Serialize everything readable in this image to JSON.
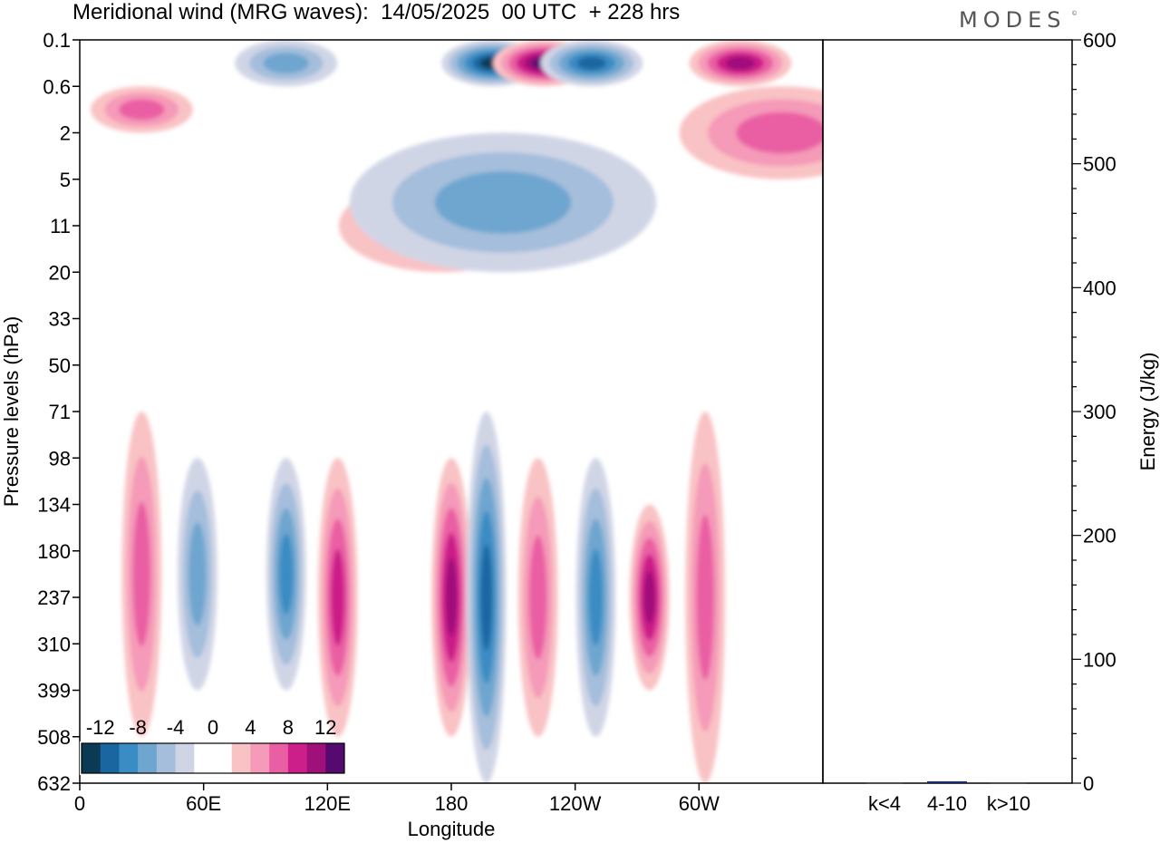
{
  "title": "Meridional wind (MRG waves):  14/05/2025  00 UTC  + 228 hrs",
  "brand": "MODES",
  "brand_mark": "©",
  "chart_data": [
    {
      "type": "heatmap",
      "xlabel": "Longitude",
      "ylabel": "Pressure levels (hPa)",
      "x_ticks": [
        "0",
        "60E",
        "120E",
        "180",
        "120W",
        "60W"
      ],
      "y_ticks": [
        "0.1",
        "0.6",
        "2",
        "5",
        "11",
        "20",
        "33",
        "50",
        "71",
        "98",
        "134",
        "180",
        "237",
        "310",
        "399",
        "508",
        "632"
      ],
      "colorbar_labels": [
        "-12",
        "-8",
        "-4",
        "0",
        "4",
        "8",
        "12"
      ],
      "colorbar_colors": [
        "#0b3a55",
        "#1a66a0",
        "#3a8cc4",
        "#6ea6cf",
        "#a4bedb",
        "#d0d5e6",
        "#ffffff",
        "#ffffff",
        "#f9c2c4",
        "#f59ab8",
        "#ea5fa3",
        "#cc1f8a",
        "#a0107a",
        "#540a6e"
      ],
      "features": [
        {
          "sign": "positive",
          "center_longitude": 30,
          "pressure_top": 71,
          "pressure_bottom": 508,
          "peak_magnitude": 8
        },
        {
          "sign": "negative",
          "center_longitude": 57,
          "pressure_top": 98,
          "pressure_bottom": 399,
          "peak_magnitude": 8
        },
        {
          "sign": "negative",
          "center_longitude": 100,
          "pressure_top": 98,
          "pressure_bottom": 399,
          "peak_magnitude": 10
        },
        {
          "sign": "positive",
          "center_longitude": 125,
          "pressure_top": 98,
          "pressure_bottom": 508,
          "peak_magnitude": 10
        },
        {
          "sign": "positive",
          "center_longitude": 180,
          "pressure_top": 98,
          "pressure_bottom": 508,
          "peak_magnitude": 12
        },
        {
          "sign": "negative",
          "center_longitude": -163,
          "pressure_top": 71,
          "pressure_bottom": 632,
          "peak_magnitude": 12
        },
        {
          "sign": "positive",
          "center_longitude": -138,
          "pressure_top": 98,
          "pressure_bottom": 508,
          "peak_magnitude": 8
        },
        {
          "sign": "negative",
          "center_longitude": -110,
          "pressure_top": 98,
          "pressure_bottom": 508,
          "peak_magnitude": 10
        },
        {
          "sign": "positive",
          "center_longitude": -84,
          "pressure_top": 134,
          "pressure_bottom": 399,
          "peak_magnitude": 12
        },
        {
          "sign": "positive",
          "center_longitude": -57,
          "pressure_top": 71,
          "pressure_bottom": 632,
          "peak_magnitude": 6
        },
        {
          "sign": "negative",
          "center_longitude": -160,
          "pressure_top": 0.1,
          "pressure_bottom": 0.6,
          "peak_magnitude": 14
        },
        {
          "sign": "positive",
          "center_longitude": -135,
          "pressure_top": 0.1,
          "pressure_bottom": 0.6,
          "peak_magnitude": 14
        },
        {
          "sign": "negative",
          "center_longitude": -112,
          "pressure_top": 0.1,
          "pressure_bottom": 0.6,
          "peak_magnitude": 12
        },
        {
          "sign": "positive",
          "center_longitude": 30,
          "pressure_top": 0.6,
          "pressure_bottom": 2,
          "peak_magnitude": 8
        },
        {
          "sign": "negative",
          "center_longitude": 100,
          "pressure_top": 0.1,
          "pressure_bottom": 0.6,
          "peak_magnitude": 8
        },
        {
          "sign": "positive",
          "center_longitude": -40,
          "pressure_top": 0.1,
          "pressure_bottom": 0.6,
          "peak_magnitude": 12
        },
        {
          "sign": "positive",
          "center_longitude": -20,
          "pressure_top": 0.6,
          "pressure_bottom": 5,
          "peak_magnitude": 6
        },
        {
          "sign": "positive",
          "center_longitude": 175,
          "pressure_top": 5,
          "pressure_bottom": 20,
          "peak_magnitude": 6
        },
        {
          "sign": "negative",
          "center_longitude": -155,
          "pressure_top": 2,
          "pressure_bottom": 20,
          "peak_magnitude": 6
        }
      ]
    },
    {
      "type": "bar",
      "ylabel": "Energy (J/kg)",
      "categories": [
        "k<4",
        "4-10",
        "k>10"
      ],
      "values": [
        0.5,
        1.5,
        0.5
      ],
      "ylim": [
        0,
        600
      ],
      "y_ticks": [
        "0",
        "100",
        "200",
        "300",
        "400",
        "500",
        "600"
      ]
    }
  ]
}
